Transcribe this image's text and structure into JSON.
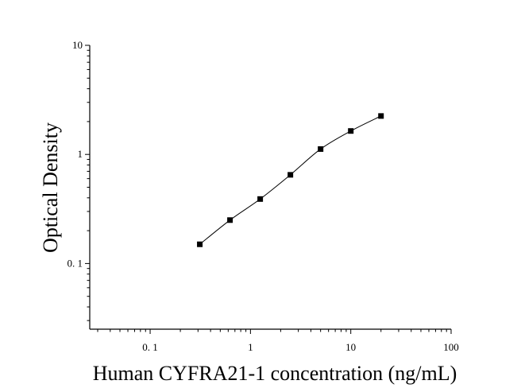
{
  "chart_data": {
    "type": "scatter",
    "title": "",
    "xlabel": "Human CYFRA21-1 concentration (ng/mL)",
    "ylabel": "Optical Density",
    "x_scale": "log",
    "y_scale": "log",
    "xlim": [
      0.025,
      100
    ],
    "ylim": [
      0.025,
      10
    ],
    "x_ticks": [
      {
        "value": 0.1,
        "label": "0. 1"
      },
      {
        "value": 1,
        "label": "1"
      },
      {
        "value": 10,
        "label": "10"
      },
      {
        "value": 100,
        "label": "100"
      }
    ],
    "y_ticks": [
      {
        "value": 0.1,
        "label": "0. 1"
      },
      {
        "value": 1,
        "label": "1"
      },
      {
        "value": 10,
        "label": "10"
      }
    ],
    "grid": false,
    "legend": "none",
    "colors": {
      "points": "#000000",
      "curve": "#000000",
      "axes": "#000000"
    },
    "series": [
      {
        "name": "",
        "marker": "square",
        "x": [
          0.3125,
          0.625,
          1.25,
          2.5,
          5,
          10,
          20
        ],
        "y": [
          0.15,
          0.25,
          0.39,
          0.65,
          1.12,
          1.64,
          2.25
        ]
      }
    ],
    "fit_curve": true
  }
}
